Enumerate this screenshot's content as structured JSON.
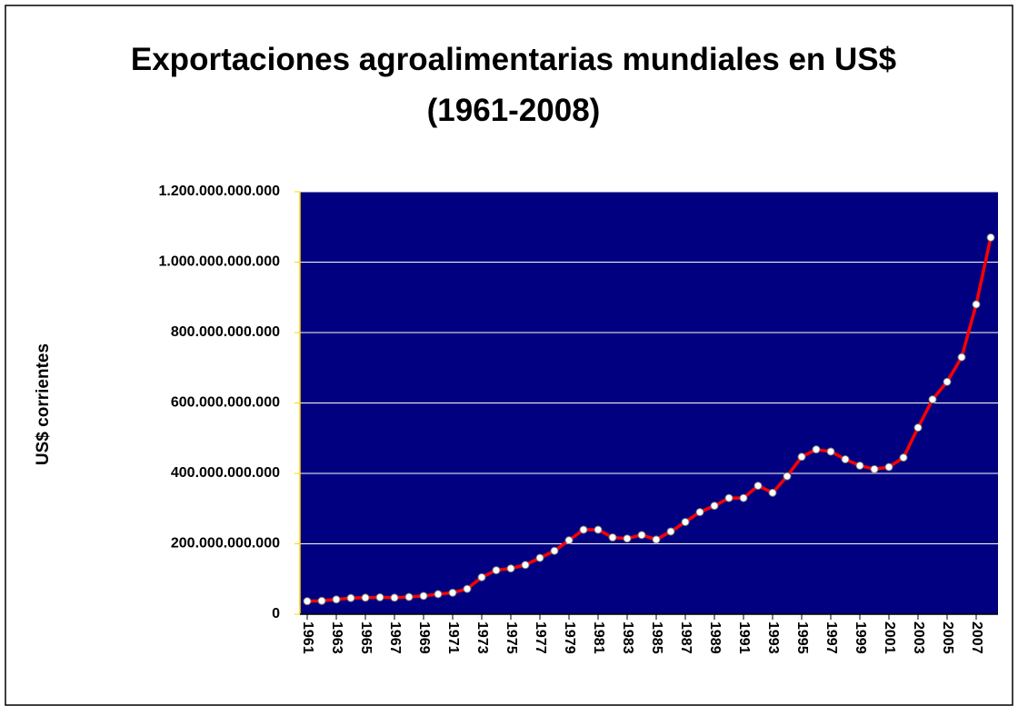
{
  "chart_data": {
    "type": "line",
    "title": "Exportaciones agroalimentarias mundiales en US$ (1961-2008)",
    "y_label": "US$ corrientes",
    "x": [
      1961,
      1962,
      1963,
      1964,
      1965,
      1966,
      1967,
      1968,
      1969,
      1970,
      1971,
      1972,
      1973,
      1974,
      1975,
      1976,
      1977,
      1978,
      1979,
      1980,
      1981,
      1982,
      1983,
      1984,
      1985,
      1986,
      1987,
      1988,
      1989,
      1990,
      1991,
      1992,
      1993,
      1994,
      1995,
      1996,
      1997,
      1998,
      1999,
      2000,
      2001,
      2002,
      2003,
      2004,
      2005,
      2006,
      2007,
      2008
    ],
    "series": [
      {
        "name": "Exportaciones",
        "color": "#ff0000",
        "values": [
          37000000000,
          38000000000,
          42000000000,
          46000000000,
          47000000000,
          48000000000,
          47000000000,
          49000000000,
          52000000000,
          57000000000,
          61000000000,
          72000000000,
          105000000000,
          125000000000,
          130000000000,
          140000000000,
          160000000000,
          180000000000,
          210000000000,
          240000000000,
          240000000000,
          218000000000,
          215000000000,
          225000000000,
          212000000000,
          235000000000,
          262000000000,
          290000000000,
          308000000000,
          330000000000,
          330000000000,
          365000000000,
          345000000000,
          392000000000,
          447000000000,
          468000000000,
          462000000000,
          440000000000,
          422000000000,
          412000000000,
          418000000000,
          445000000000,
          530000000000,
          610000000000,
          660000000000,
          730000000000,
          880000000000,
          1070000000000
        ]
      }
    ],
    "xlim": [
      1960.5,
      2008.5
    ],
    "xticks": [
      1961,
      1963,
      1965,
      1967,
      1969,
      1971,
      1973,
      1975,
      1977,
      1979,
      1981,
      1983,
      1985,
      1987,
      1989,
      1991,
      1993,
      1995,
      1997,
      1999,
      2001,
      2003,
      2005,
      2007
    ],
    "ylim": [
      0,
      1200000000000
    ],
    "yticks": [
      0,
      {
        "value": 200000000000,
        "label": "200.000.000.000"
      },
      {
        "value": 400000000000,
        "label": "400.000.000.000"
      },
      {
        "value": 600000000000,
        "label": "600.000.000.000"
      },
      {
        "value": 800000000000,
        "label": "800.000.000.000"
      },
      {
        "value": 1000000000000,
        "label": "1.000.000.000.000"
      },
      {
        "value": 1200000000000,
        "label": "1.200.000.000.000"
      }
    ],
    "grid": true,
    "plot_background": "#000080"
  }
}
